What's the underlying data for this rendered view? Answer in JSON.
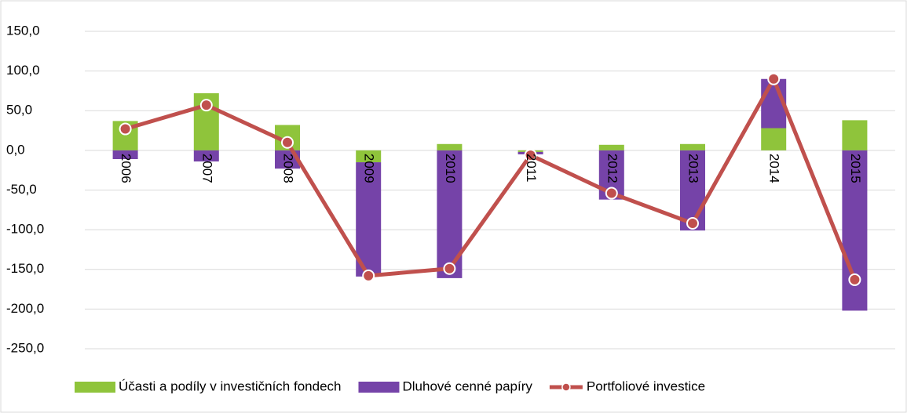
{
  "chart_data": {
    "type": "bar-line",
    "categories": [
      "2006",
      "2007",
      "2008",
      "2009",
      "2010",
      "2011",
      "2012",
      "2013",
      "2014",
      "2015"
    ],
    "series": [
      {
        "name": "Účasti a podíly v investičních fondech",
        "type": "bar",
        "color": "#8fc43b",
        "values": [
          37,
          72,
          32,
          -15,
          8,
          -2,
          7,
          8,
          28,
          38
        ]
      },
      {
        "name": "Dluhové cenné papíry",
        "type": "bar",
        "color": "#7543a8",
        "values": [
          -11,
          -14,
          -23,
          -144,
          -161,
          -3,
          -62,
          -101,
          62,
          -202
        ]
      },
      {
        "name": "Portfoliové investice",
        "type": "line",
        "color": "#c0504d",
        "values": [
          27,
          57,
          10,
          -158,
          -149,
          -6,
          -54,
          -92,
          90,
          -163
        ]
      }
    ],
    "ylim": [
      -250,
      150
    ],
    "yticks": [
      {
        "value": -250,
        "label": "-250,0"
      },
      {
        "value": -200,
        "label": "-200,0"
      },
      {
        "value": -150,
        "label": "-150,0"
      },
      {
        "value": -100,
        "label": "-100,0"
      },
      {
        "value": -50,
        "label": "-50,0"
      },
      {
        "value": 0,
        "label": "0,0"
      },
      {
        "value": 50,
        "label": "50,0"
      },
      {
        "value": 100,
        "label": "100,0"
      },
      {
        "value": 150,
        "label": "150,0"
      }
    ],
    "grid": true,
    "legend": "bottom"
  }
}
